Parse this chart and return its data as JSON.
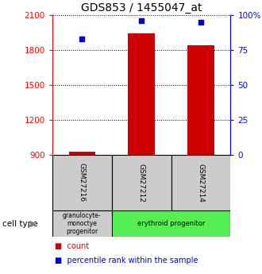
{
  "title": "GDS853 / 1455047_at",
  "samples": [
    "GSM27216",
    "GSM27212",
    "GSM27214"
  ],
  "counts": [
    925,
    1940,
    1840
  ],
  "percentiles": [
    83,
    96,
    95
  ],
  "ylim_left": [
    900,
    2100
  ],
  "ylim_right": [
    0,
    100
  ],
  "yticks_left": [
    900,
    1200,
    1500,
    1800,
    2100
  ],
  "yticks_right": [
    0,
    25,
    50,
    75,
    100
  ],
  "ytick_labels_right": [
    "0",
    "25",
    "50",
    "75",
    "100%"
  ],
  "bar_color": "#cc0000",
  "dot_color": "#0000cc",
  "cell_types": [
    "granulocyte-\nmonoctye\nprogenitor",
    "erythroid progenitor",
    "erythroid progenitor"
  ],
  "cell_type_colors": [
    "#cccccc",
    "#55ee55",
    "#55ee55"
  ],
  "gray_box_color": "#cccccc",
  "title_fontsize": 10,
  "tick_fontsize": 7.5,
  "legend_fontsize": 7,
  "cell_type_fontsize": 6,
  "sample_fontsize": 6.5,
  "cell_type_small_fontsize": 5.5
}
